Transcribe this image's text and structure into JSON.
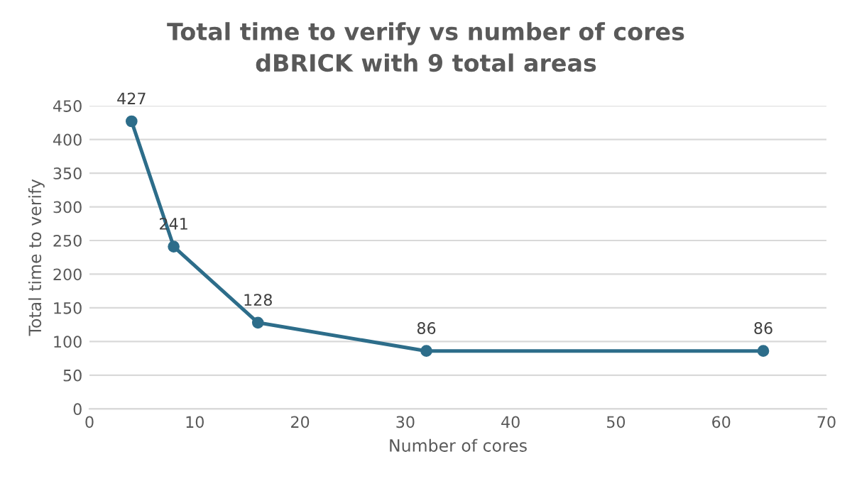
{
  "chart_data": {
    "type": "line",
    "title": "Total time to verify vs number of cores",
    "subtitle": "dBRICK with 9 total areas",
    "xlabel": "Number of cores",
    "ylabel": "Total time to verify",
    "x": [
      4,
      8,
      16,
      32,
      64
    ],
    "series": [
      {
        "color": "#2d6d8a",
        "values": [
          427,
          241,
          128,
          86,
          86
        ]
      }
    ],
    "xlim": [
      0,
      70
    ],
    "xticks": [
      0,
      10,
      20,
      30,
      40,
      50,
      60,
      70
    ],
    "ylim": [
      0,
      450
    ],
    "yticks": [
      0,
      50,
      100,
      150,
      200,
      250,
      300,
      350,
      400,
      450
    ],
    "grid": "y",
    "marker": "circle",
    "line_style": "solid",
    "data_labels": true
  }
}
